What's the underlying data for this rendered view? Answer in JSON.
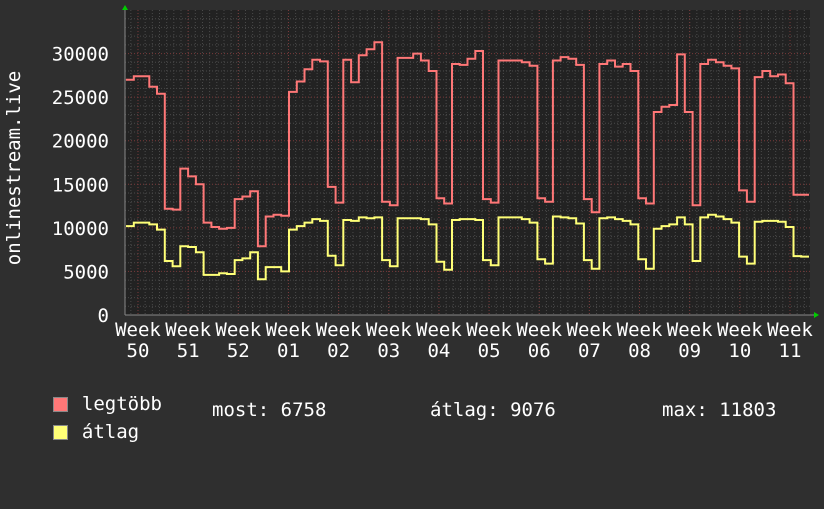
{
  "chart_data": {
    "type": "line",
    "ylabel": "onlinestream.live",
    "ylim": [
      0,
      35000
    ],
    "yticks": [
      "0",
      "5000",
      "10000",
      "15000",
      "20000",
      "25000",
      "30000"
    ],
    "ytick_values": [
      0,
      5000,
      10000,
      15000,
      20000,
      25000,
      30000
    ],
    "xtick_labels": [
      "Week 50",
      "Week 51",
      "Week 52",
      "Week 01",
      "Week 02",
      "Week 03",
      "Week 04",
      "Week 05",
      "Week 06",
      "Week 07",
      "Week 08",
      "Week 09",
      "Week 10",
      "Week 11"
    ],
    "grid": true,
    "series": [
      {
        "name": "legtöbb",
        "color": "#ff7777",
        "values": [
          27000,
          27400,
          27400,
          26200,
          25400,
          12200,
          12100,
          16800,
          15900,
          15000,
          10600,
          10100,
          9900,
          10000,
          13300,
          13600,
          14200,
          7900,
          11300,
          11500,
          11400,
          25600,
          26800,
          28200,
          29300,
          29100,
          14700,
          12900,
          29300,
          26700,
          29800,
          30500,
          31300,
          13000,
          12600,
          29500,
          29500,
          30000,
          29200,
          28000,
          13400,
          12800,
          28800,
          28700,
          29400,
          30300,
          13300,
          12900,
          29200,
          29200,
          29200,
          29000,
          28600,
          13400,
          13000,
          29200,
          29600,
          29400,
          28700,
          13300,
          11800,
          28800,
          29200,
          28500,
          28800,
          28000,
          13400,
          12800,
          23300,
          23900,
          24100,
          29900,
          23300,
          12600,
          28800,
          29300,
          29000,
          28600,
          28300,
          14300,
          13000,
          27300,
          28000,
          27400,
          27600,
          26600,
          13800,
          13800
        ]
      },
      {
        "name": "átlag",
        "color": "#ffff77",
        "values": [
          10200,
          10600,
          10600,
          10400,
          9800,
          6200,
          5600,
          7900,
          7800,
          7200,
          4600,
          4600,
          4800,
          4700,
          6300,
          6500,
          7200,
          4100,
          5500,
          5500,
          5000,
          9800,
          10200,
          10600,
          11000,
          10800,
          6800,
          5700,
          10900,
          10800,
          11200,
          11100,
          11200,
          6300,
          5600,
          11100,
          11100,
          11100,
          11000,
          10400,
          6100,
          5200,
          10900,
          11000,
          11000,
          10900,
          6300,
          5700,
          11200,
          11200,
          11200,
          11000,
          10600,
          6400,
          5900,
          11300,
          11200,
          11100,
          10500,
          6300,
          5300,
          11100,
          11200,
          11000,
          10800,
          10400,
          6400,
          5300,
          9900,
          10200,
          10400,
          11200,
          10400,
          6200,
          11200,
          11500,
          11300,
          11000,
          10600,
          6700,
          5900,
          10700,
          10800,
          10800,
          10700,
          10100,
          6758,
          6700
        ]
      }
    ]
  },
  "legend": {
    "items": [
      {
        "label": "legtöbb",
        "color": "#ff7777"
      },
      {
        "label": "átlag",
        "color": "#ffff77"
      }
    ],
    "most": "most: 6758",
    "atlag": "átlag: 9076",
    "max": "max: 11803"
  }
}
